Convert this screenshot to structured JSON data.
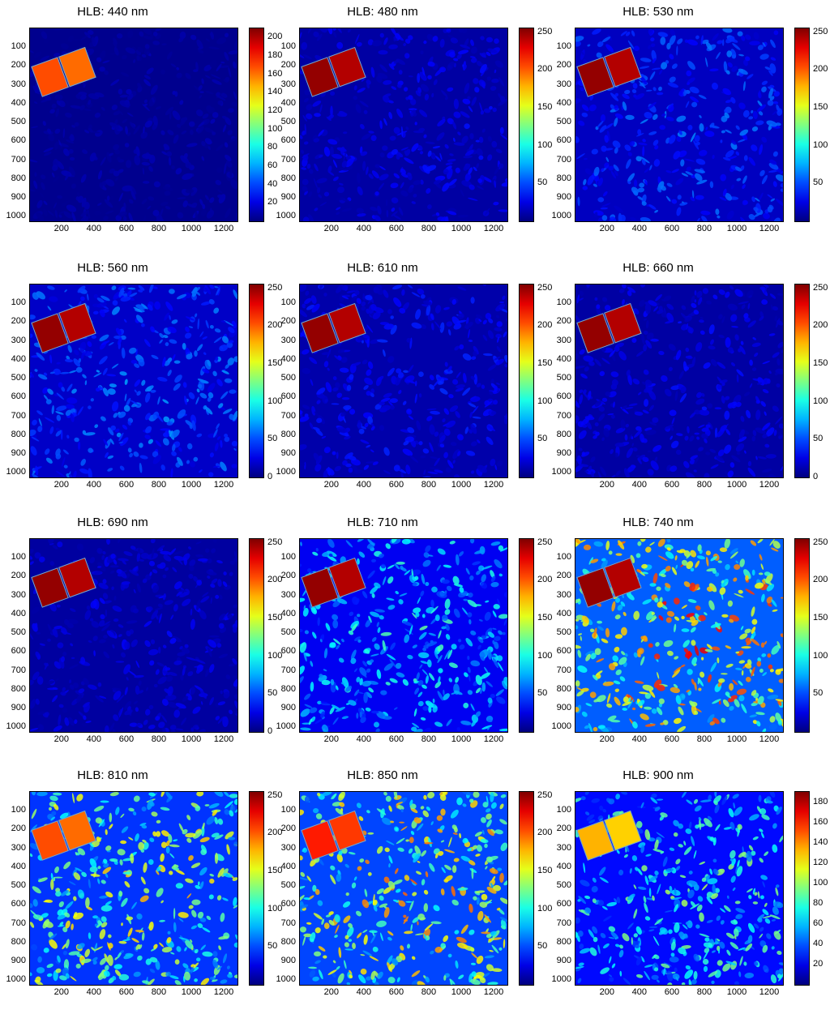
{
  "chart_data": [
    {
      "type": "heatmap",
      "title": "HLB: 440 nm",
      "xticks": [
        200,
        400,
        600,
        800,
        1000,
        1200
      ],
      "yticks": [
        100,
        200,
        300,
        400,
        500,
        600,
        700,
        800,
        900,
        1000
      ],
      "xlim": [
        1,
        1280
      ],
      "ylim": [
        1,
        1024
      ],
      "clim": [
        0,
        210
      ],
      "cbar_ticks": [
        20,
        40,
        60,
        80,
        100,
        120,
        140,
        160,
        180,
        200
      ],
      "colormap": "jet",
      "mean_level": 0.04,
      "target_level": 0.8
    },
    {
      "type": "heatmap",
      "title": "HLB: 480 nm",
      "xticks": [
        200,
        400,
        600,
        800,
        1000,
        1200
      ],
      "yticks": [
        100,
        200,
        300,
        400,
        500,
        600,
        700,
        800,
        900,
        1000
      ],
      "xlim": [
        1,
        1280
      ],
      "ylim": [
        1,
        1024
      ],
      "clim": [
        0,
        255
      ],
      "cbar_ticks": [
        50,
        100,
        150,
        200,
        250
      ],
      "colormap": "jet",
      "mean_level": 0.1,
      "target_level": 0.98
    },
    {
      "type": "heatmap",
      "title": "HLB: 530 nm",
      "xticks": [
        200,
        400,
        600,
        800,
        1000,
        1200
      ],
      "yticks": [
        100,
        200,
        300,
        400,
        500,
        600,
        700,
        800,
        900,
        1000
      ],
      "xlim": [
        1,
        1280
      ],
      "ylim": [
        1,
        1024
      ],
      "clim": [
        0,
        255
      ],
      "cbar_ticks": [
        50,
        100,
        150,
        200,
        250
      ],
      "colormap": "jet",
      "mean_level": 0.18,
      "target_level": 0.98
    },
    {
      "type": "heatmap",
      "title": "HLB: 560 nm",
      "xticks": [
        200,
        400,
        600,
        800,
        1000,
        1200
      ],
      "yticks": [
        100,
        200,
        300,
        400,
        500,
        600,
        700,
        800,
        900,
        1000
      ],
      "xlim": [
        1,
        1280
      ],
      "ylim": [
        1,
        1024
      ],
      "clim": [
        0,
        255
      ],
      "cbar_ticks": [
        0,
        50,
        100,
        150,
        200,
        250
      ],
      "colormap": "jet",
      "mean_level": 0.2,
      "target_level": 0.98
    },
    {
      "type": "heatmap",
      "title": "HLB: 610 nm",
      "xticks": [
        200,
        400,
        600,
        800,
        1000,
        1200
      ],
      "yticks": [
        100,
        200,
        300,
        400,
        500,
        600,
        700,
        800,
        900,
        1000
      ],
      "xlim": [
        1,
        1280
      ],
      "ylim": [
        1,
        1024
      ],
      "clim": [
        0,
        255
      ],
      "cbar_ticks": [
        50,
        100,
        150,
        200,
        250
      ],
      "colormap": "jet",
      "mean_level": 0.12,
      "target_level": 0.98
    },
    {
      "type": "heatmap",
      "title": "HLB: 660 nm",
      "xticks": [
        200,
        400,
        600,
        800,
        1000,
        1200
      ],
      "yticks": [
        100,
        200,
        300,
        400,
        500,
        600,
        700,
        800,
        900,
        1000
      ],
      "xlim": [
        1,
        1280
      ],
      "ylim": [
        1,
        1024
      ],
      "clim": [
        0,
        255
      ],
      "cbar_ticks": [
        0,
        50,
        100,
        150,
        200,
        250
      ],
      "colormap": "jet",
      "mean_level": 0.1,
      "target_level": 0.98
    },
    {
      "type": "heatmap",
      "title": "HLB: 690 nm",
      "xticks": [
        200,
        400,
        600,
        800,
        1000,
        1200
      ],
      "yticks": [
        100,
        200,
        300,
        400,
        500,
        600,
        700,
        800,
        900,
        1000
      ],
      "xlim": [
        1,
        1280
      ],
      "ylim": [
        1,
        1024
      ],
      "clim": [
        0,
        255
      ],
      "cbar_ticks": [
        0,
        50,
        100,
        150,
        200,
        250
      ],
      "colormap": "jet",
      "mean_level": 0.09,
      "target_level": 0.98
    },
    {
      "type": "heatmap",
      "title": "HLB: 710 nm",
      "xticks": [
        200,
        400,
        600,
        800,
        1000,
        1200
      ],
      "yticks": [
        100,
        200,
        300,
        400,
        500,
        600,
        700,
        800,
        900,
        1000
      ],
      "xlim": [
        1,
        1280
      ],
      "ylim": [
        1,
        1024
      ],
      "clim": [
        0,
        255
      ],
      "cbar_ticks": [
        50,
        100,
        150,
        200,
        250
      ],
      "colormap": "jet",
      "mean_level": 0.32,
      "target_level": 0.98
    },
    {
      "type": "heatmap",
      "title": "HLB: 740 nm",
      "xticks": [
        200,
        400,
        600,
        800,
        1000,
        1200
      ],
      "yticks": [
        100,
        200,
        300,
        400,
        500,
        600,
        700,
        800,
        900,
        1000
      ],
      "xlim": [
        1,
        1280
      ],
      "ylim": [
        1,
        1024
      ],
      "clim": [
        0,
        255
      ],
      "cbar_ticks": [
        50,
        100,
        150,
        200,
        250
      ],
      "colormap": "jet",
      "mean_level": 0.62,
      "target_level": 0.98
    },
    {
      "type": "heatmap",
      "title": "HLB: 810 nm",
      "xticks": [
        200,
        400,
        600,
        800,
        1000,
        1200
      ],
      "yticks": [
        100,
        200,
        300,
        400,
        500,
        600,
        700,
        800,
        900,
        1000
      ],
      "xlim": [
        1,
        1280
      ],
      "ylim": [
        1,
        1024
      ],
      "clim": [
        0,
        255
      ],
      "cbar_ticks": [
        50,
        100,
        150,
        200,
        250
      ],
      "colormap": "jet",
      "mean_level": 0.5,
      "target_level": 0.8
    },
    {
      "type": "heatmap",
      "title": "HLB: 850 nm",
      "xticks": [
        200,
        400,
        600,
        800,
        1000,
        1200
      ],
      "yticks": [
        100,
        200,
        300,
        400,
        500,
        600,
        700,
        800,
        900,
        1000
      ],
      "xlim": [
        1,
        1280
      ],
      "ylim": [
        1,
        1024
      ],
      "clim": [
        0,
        255
      ],
      "cbar_ticks": [
        50,
        100,
        150,
        200,
        250
      ],
      "colormap": "jet",
      "mean_level": 0.55,
      "target_level": 0.85
    },
    {
      "type": "heatmap",
      "title": "HLB: 900 nm",
      "xticks": [
        200,
        400,
        600,
        800,
        1000,
        1200
      ],
      "yticks": [
        100,
        200,
        300,
        400,
        500,
        600,
        700,
        800,
        900,
        1000
      ],
      "xlim": [
        1,
        1280
      ],
      "ylim": [
        1,
        1024
      ],
      "clim": [
        0,
        190
      ],
      "cbar_ticks": [
        20,
        40,
        60,
        80,
        100,
        120,
        140,
        160,
        180
      ],
      "colormap": "jet",
      "mean_level": 0.38,
      "target_level": 0.7
    }
  ]
}
